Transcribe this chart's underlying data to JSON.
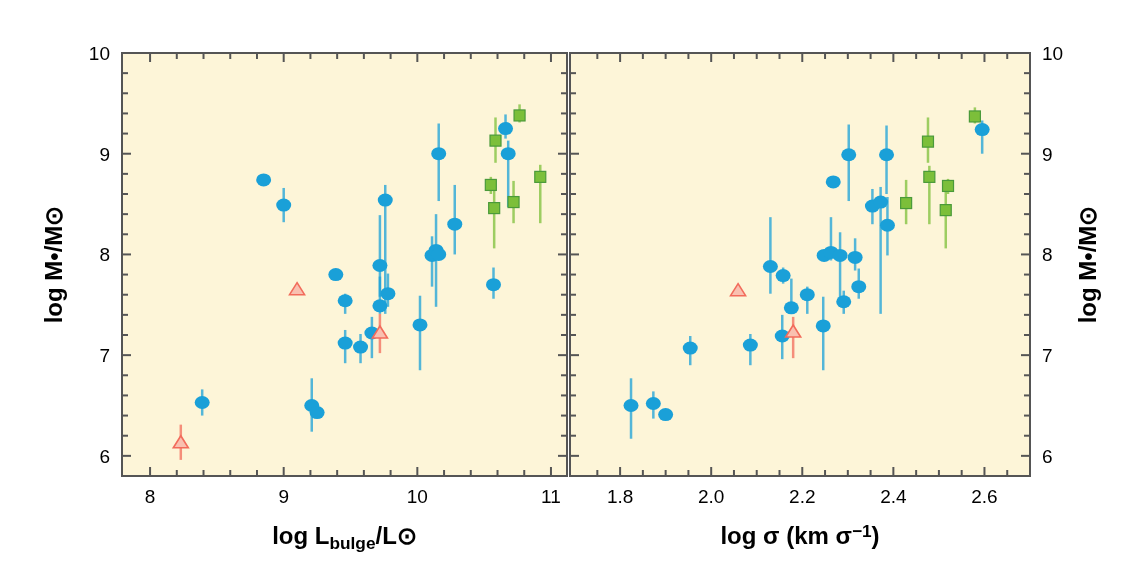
{
  "chart_data": [
    {
      "type": "scatter",
      "xlabel": "log L$_{bulge}$/L⊙",
      "ylabel": "log M•/M⊙",
      "xlim": [
        7.79,
        11.12
      ],
      "ylim": [
        5.8,
        10
      ],
      "grid": false,
      "xticks": [
        8,
        {
          "value": 8.2,
          "label": null
        },
        {
          "value": 8.4,
          "label": null
        },
        {
          "value": 8.6,
          "label": null
        },
        {
          "value": 8.8,
          "label": null
        },
        9,
        {
          "value": 9.2,
          "label": null
        },
        {
          "value": 9.4,
          "label": null
        },
        {
          "value": 9.6,
          "label": null
        },
        {
          "value": 9.8,
          "label": null
        },
        10,
        {
          "value": 10.2,
          "label": null
        },
        {
          "value": 10.4,
          "label": null
        },
        {
          "value": 10.6,
          "label": null
        },
        {
          "value": 10.8,
          "label": null
        },
        11
      ],
      "yticks": [
        {
          "value": 5.8,
          "label": null
        },
        6,
        {
          "value": 6.2,
          "label": null
        },
        {
          "value": 6.4,
          "label": null
        },
        {
          "value": 6.6,
          "label": null
        },
        {
          "value": 6.8,
          "label": null
        },
        7,
        {
          "value": 7.2,
          "label": null
        },
        {
          "value": 7.4,
          "label": null
        },
        {
          "value": 7.6,
          "label": null
        },
        {
          "value": 7.8,
          "label": null
        },
        8,
        {
          "value": 8.2,
          "label": null
        },
        {
          "value": 8.4,
          "label": null
        },
        {
          "value": 8.6,
          "label": null
        },
        {
          "value": 8.8,
          "label": null
        },
        9,
        {
          "value": 9.2,
          "label": null
        },
        {
          "value": 9.4,
          "label": null
        },
        {
          "value": 9.6,
          "label": null
        },
        {
          "value": 9.8,
          "label": null
        },
        10
      ],
      "series": [
        {
          "color": "#1aa0d8",
          "marker": "circle",
          "x": [
            8.85,
            9.0,
            8.39,
            9.21,
            9.25,
            9.39,
            9.46,
            9.46,
            9.575,
            9.66,
            9.72,
            9.72,
            9.76,
            9.78,
            10.02,
            10.11,
            10.14,
            10.16,
            10.16,
            10.28,
            10.57,
            10.66,
            10.68
          ],
          "values": [
            8.74,
            8.49,
            6.53,
            6.5,
            6.43,
            7.8,
            7.54,
            7.12,
            7.08,
            7.22,
            7.89,
            7.49,
            8.54,
            7.61,
            7.3,
            7.99,
            8.04,
            8.0,
            9.0,
            8.3,
            7.7,
            9.25,
            9.0
          ],
          "errors": [
            null,
            [
              8.32,
              8.66
            ],
            [
              6.4,
              6.66
            ],
            [
              6.24,
              6.77
            ],
            null,
            null,
            [
              7.41,
              7.61
            ],
            [
              6.92,
              7.25
            ],
            [
              6.92,
              7.21
            ],
            [
              6.97,
              7.38
            ],
            [
              7.58,
              8.39
            ],
            [
              7.41,
              7.78
            ],
            [
              7.41,
              8.69
            ],
            [
              7.48,
              7.81
            ],
            [
              6.85,
              7.59
            ],
            [
              7.68,
              8.18
            ],
            [
              7.48,
              8.4
            ],
            null,
            [
              8.53,
              9.3
            ],
            [
              8.0,
              8.69
            ],
            [
              7.56,
              7.87
            ],
            [
              9.15,
              9.39
            ],
            [
              8.47,
              9.13
            ]
          ]
        },
        {
          "color": "#f26b5b",
          "marker": "triangle",
          "x": [
            8.23,
            9.1,
            9.72
          ],
          "values": [
            6.13,
            7.65,
            7.22
          ],
          "errors": [
            [
              5.96,
              6.31
            ],
            null,
            [
              7.02,
              7.41
            ]
          ]
        },
        {
          "color": "#7cbf3a",
          "marker": "square",
          "x": [
            10.585,
            10.765,
            10.55,
            10.575,
            10.72,
            10.92
          ],
          "values": [
            9.13,
            9.38,
            8.69,
            8.46,
            8.52,
            8.77
          ],
          "errors": [
            [
              8.91,
              9.36
            ],
            [
              9.31,
              9.49
            ],
            [
              8.6,
              8.77
            ],
            [
              8.06,
              8.7
            ],
            [
              8.31,
              8.73
            ],
            [
              8.31,
              8.89
            ]
          ]
        }
      ]
    },
    {
      "type": "scatter",
      "xlabel": "log σ (km σ$^{−1}$)",
      "ylabel": "log M•/M⊙",
      "xlim": [
        1.69,
        2.7
      ],
      "ylim": [
        5.8,
        10
      ],
      "grid": false,
      "xticks": [
        {
          "value": 1.75,
          "label": null
        },
        "1.8",
        {
          "value": 1.85,
          "label": null
        },
        {
          "value": 1.9,
          "label": null
        },
        {
          "value": 1.95,
          "label": null
        },
        {
          "value": 2.0,
          "label": "2.0"
        },
        {
          "value": 2.05,
          "label": null
        },
        {
          "value": 2.1,
          "label": null
        },
        {
          "value": 2.15,
          "label": null
        },
        2.2,
        {
          "value": 2.25,
          "label": null
        },
        {
          "value": 2.3,
          "label": null
        },
        {
          "value": 2.35,
          "label": null
        },
        2.4,
        {
          "value": 2.45,
          "label": null
        },
        {
          "value": 2.5,
          "label": null
        },
        {
          "value": 2.55,
          "label": null
        },
        2.6,
        {
          "value": 2.65,
          "label": null
        }
      ],
      "yticks": [
        {
          "value": 5.8,
          "label": null
        },
        6,
        {
          "value": 6.2,
          "label": null
        },
        {
          "value": 6.4,
          "label": null
        },
        {
          "value": 6.6,
          "label": null
        },
        {
          "value": 6.8,
          "label": null
        },
        7,
        {
          "value": 7.2,
          "label": null
        },
        {
          "value": 7.4,
          "label": null
        },
        {
          "value": 7.6,
          "label": null
        },
        {
          "value": 7.8,
          "label": null
        },
        8,
        {
          "value": 8.2,
          "label": null
        },
        {
          "value": 8.4,
          "label": null
        },
        {
          "value": 8.6,
          "label": null
        },
        {
          "value": 8.8,
          "label": null
        },
        9,
        {
          "value": 9.2,
          "label": null
        },
        {
          "value": 9.4,
          "label": null
        },
        {
          "value": 9.6,
          "label": null
        },
        {
          "value": 9.8,
          "label": null
        },
        10
      ],
      "series": [
        {
          "color": "#1aa0d8",
          "marker": "circle",
          "x": [
            1.824,
            1.873,
            1.9,
            1.954,
            2.086,
            2.13,
            2.156,
            2.158,
            2.176,
            2.211,
            2.246,
            2.248,
            2.263,
            2.283,
            2.268,
            2.291,
            2.302,
            2.316,
            2.324,
            2.354,
            2.372,
            2.385,
            2.387,
            2.595
          ],
          "values": [
            6.5,
            6.52,
            6.41,
            7.07,
            7.1,
            7.88,
            7.19,
            7.79,
            7.47,
            7.6,
            7.29,
            7.99,
            8.02,
            7.99,
            8.72,
            7.53,
            8.99,
            7.97,
            7.68,
            8.48,
            8.52,
            8.99,
            8.29,
            9.24
          ],
          "errors": [
            [
              6.17,
              6.77
            ],
            [
              6.37,
              6.64
            ],
            null,
            [
              6.9,
              7.19
            ],
            [
              6.9,
              7.21
            ],
            [
              7.61,
              8.37
            ],
            [
              6.96,
              7.4
            ],
            [
              7.71,
              7.87
            ],
            [
              7.41,
              7.76
            ],
            [
              7.41,
              7.68
            ],
            [
              6.85,
              7.58
            ],
            null,
            [
              7.94,
              8.37
            ],
            [
              7.54,
              8.22
            ],
            null,
            [
              7.41,
              7.64
            ],
            [
              8.53,
              9.29
            ],
            [
              7.84,
              8.16
            ],
            [
              7.56,
              7.86
            ],
            [
              8.3,
              8.65
            ],
            [
              7.41,
              8.67
            ],
            [
              8.6,
              9.28
            ],
            [
              7.99,
              8.57
            ],
            [
              9.0,
              9.33
            ]
          ]
        },
        {
          "color": "#f26b5b",
          "marker": "triangle",
          "x": [
            2.059,
            2.18
          ],
          "values": [
            7.64,
            7.23
          ],
          "errors": [
            null,
            [
              6.97,
              7.38
            ]
          ]
        },
        {
          "color": "#7cbf3a",
          "marker": "square",
          "x": [
            2.579,
            2.476,
            2.479,
            2.52,
            2.428,
            2.515
          ],
          "values": [
            9.37,
            9.12,
            8.77,
            8.68,
            8.51,
            8.44
          ],
          "errors": [
            [
              9.3,
              9.46
            ],
            [
              8.91,
              9.36
            ],
            [
              8.3,
              8.88
            ],
            [
              8.6,
              8.75
            ],
            [
              8.3,
              8.74
            ],
            [
              8.06,
              8.62
            ]
          ]
        }
      ]
    }
  ]
}
